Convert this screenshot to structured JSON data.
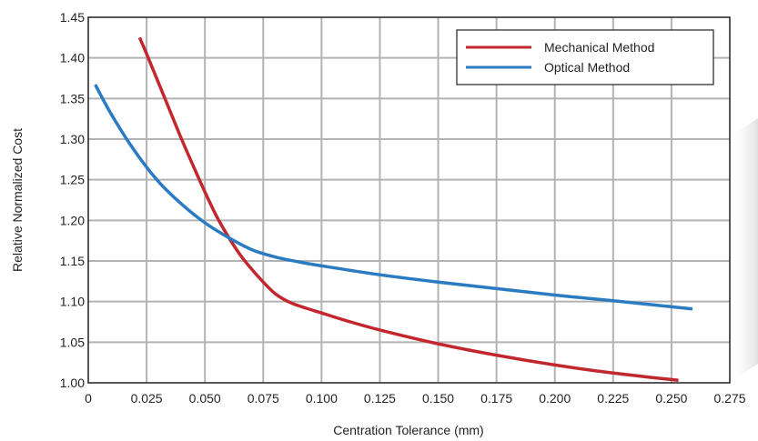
{
  "chart_data": {
    "type": "line",
    "title": "",
    "xlabel": "Centration Tolerance (mm)",
    "ylabel": "Relative Normalized Cost",
    "xlim": [
      0,
      0.275
    ],
    "ylim": [
      1.0,
      1.45
    ],
    "x_ticks": [
      "0",
      "0.025",
      "0.050",
      "0.075",
      "0.100",
      "0.125",
      "0.150",
      "0.175",
      "0.200",
      "0.225",
      "0.250",
      "0.275"
    ],
    "y_ticks": [
      "1.00",
      "1.05",
      "1.10",
      "1.15",
      "1.20",
      "1.25",
      "1.30",
      "1.35",
      "1.40",
      "1.45"
    ],
    "grid": true,
    "legend_position": "top-right",
    "series": [
      {
        "name": "Mechanical Method",
        "color": "#c1272d",
        "x": [
          0.022,
          0.025,
          0.03,
          0.035,
          0.04,
          0.045,
          0.05,
          0.055,
          0.06,
          0.065,
          0.07,
          0.075,
          0.08,
          0.085,
          0.09,
          0.1,
          0.11,
          0.125,
          0.15,
          0.175,
          0.2,
          0.225,
          0.253
        ],
        "y": [
          1.425,
          1.405,
          1.37,
          1.335,
          1.3,
          1.267,
          1.235,
          1.205,
          1.18,
          1.158,
          1.14,
          1.124,
          1.11,
          1.101,
          1.095,
          1.086,
          1.077,
          1.065,
          1.048,
          1.034,
          1.022,
          1.012,
          1.003
        ]
      },
      {
        "name": "Optical Method",
        "color": "#2a7bc1",
        "x": [
          0.003,
          0.01,
          0.02,
          0.03,
          0.04,
          0.05,
          0.06,
          0.07,
          0.08,
          0.09,
          0.1,
          0.125,
          0.15,
          0.175,
          0.2,
          0.225,
          0.259
        ],
        "y": [
          1.367,
          1.33,
          1.285,
          1.248,
          1.22,
          1.197,
          1.179,
          1.164,
          1.155,
          1.149,
          1.144,
          1.133,
          1.124,
          1.116,
          1.108,
          1.101,
          1.091
        ]
      }
    ]
  }
}
